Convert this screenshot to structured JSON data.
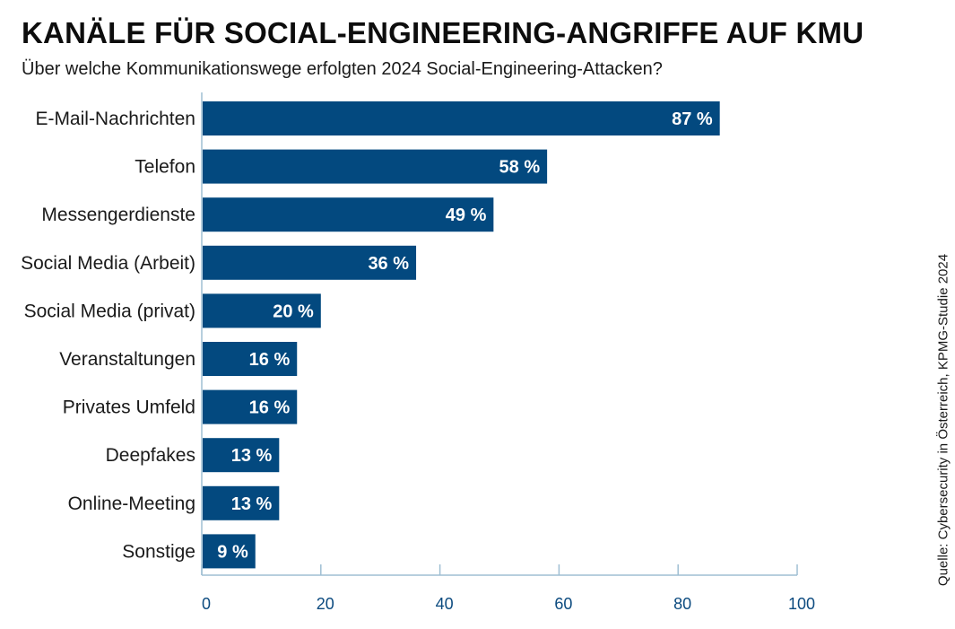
{
  "chart_data": {
    "type": "bar",
    "orientation": "horizontal",
    "title": "KANÄLE FÜR SOCIAL-ENGINEERING-ANGRIFFE AUF KMU",
    "subtitle": "Über welche Kommunikationswege erfolgten 2024 Social-Engineering-Attacken?",
    "categories": [
      "E-Mail-Nachrichten",
      "Telefon",
      "Messengerdienste",
      "Social Media (Arbeit)",
      "Social Media (privat)",
      "Veranstaltungen",
      "Privates Umfeld",
      "Deepfakes",
      "Online-Meeting",
      "Sonstige"
    ],
    "values": [
      87,
      58,
      49,
      36,
      20,
      16,
      16,
      13,
      13,
      9
    ],
    "value_labels": [
      "87 %",
      "58 %",
      "49 %",
      "36 %",
      "20 %",
      "16 %",
      "16 %",
      "13 %",
      "13 %",
      "9 %"
    ],
    "xlim": [
      0,
      100
    ],
    "xticks": [
      0,
      20,
      40,
      60,
      80,
      100
    ],
    "xtick_labels": [
      "0",
      "20",
      "40",
      "60",
      "80",
      "100"
    ],
    "xlabel": "",
    "ylabel": "",
    "grid": false,
    "bar_color": "#03497f",
    "axis_color": "#9fbfd3",
    "tick_label_color": "#0b4a7f"
  },
  "source": "Quelle: Cybersecurity in Österreich, KPMG-Studie 2024"
}
